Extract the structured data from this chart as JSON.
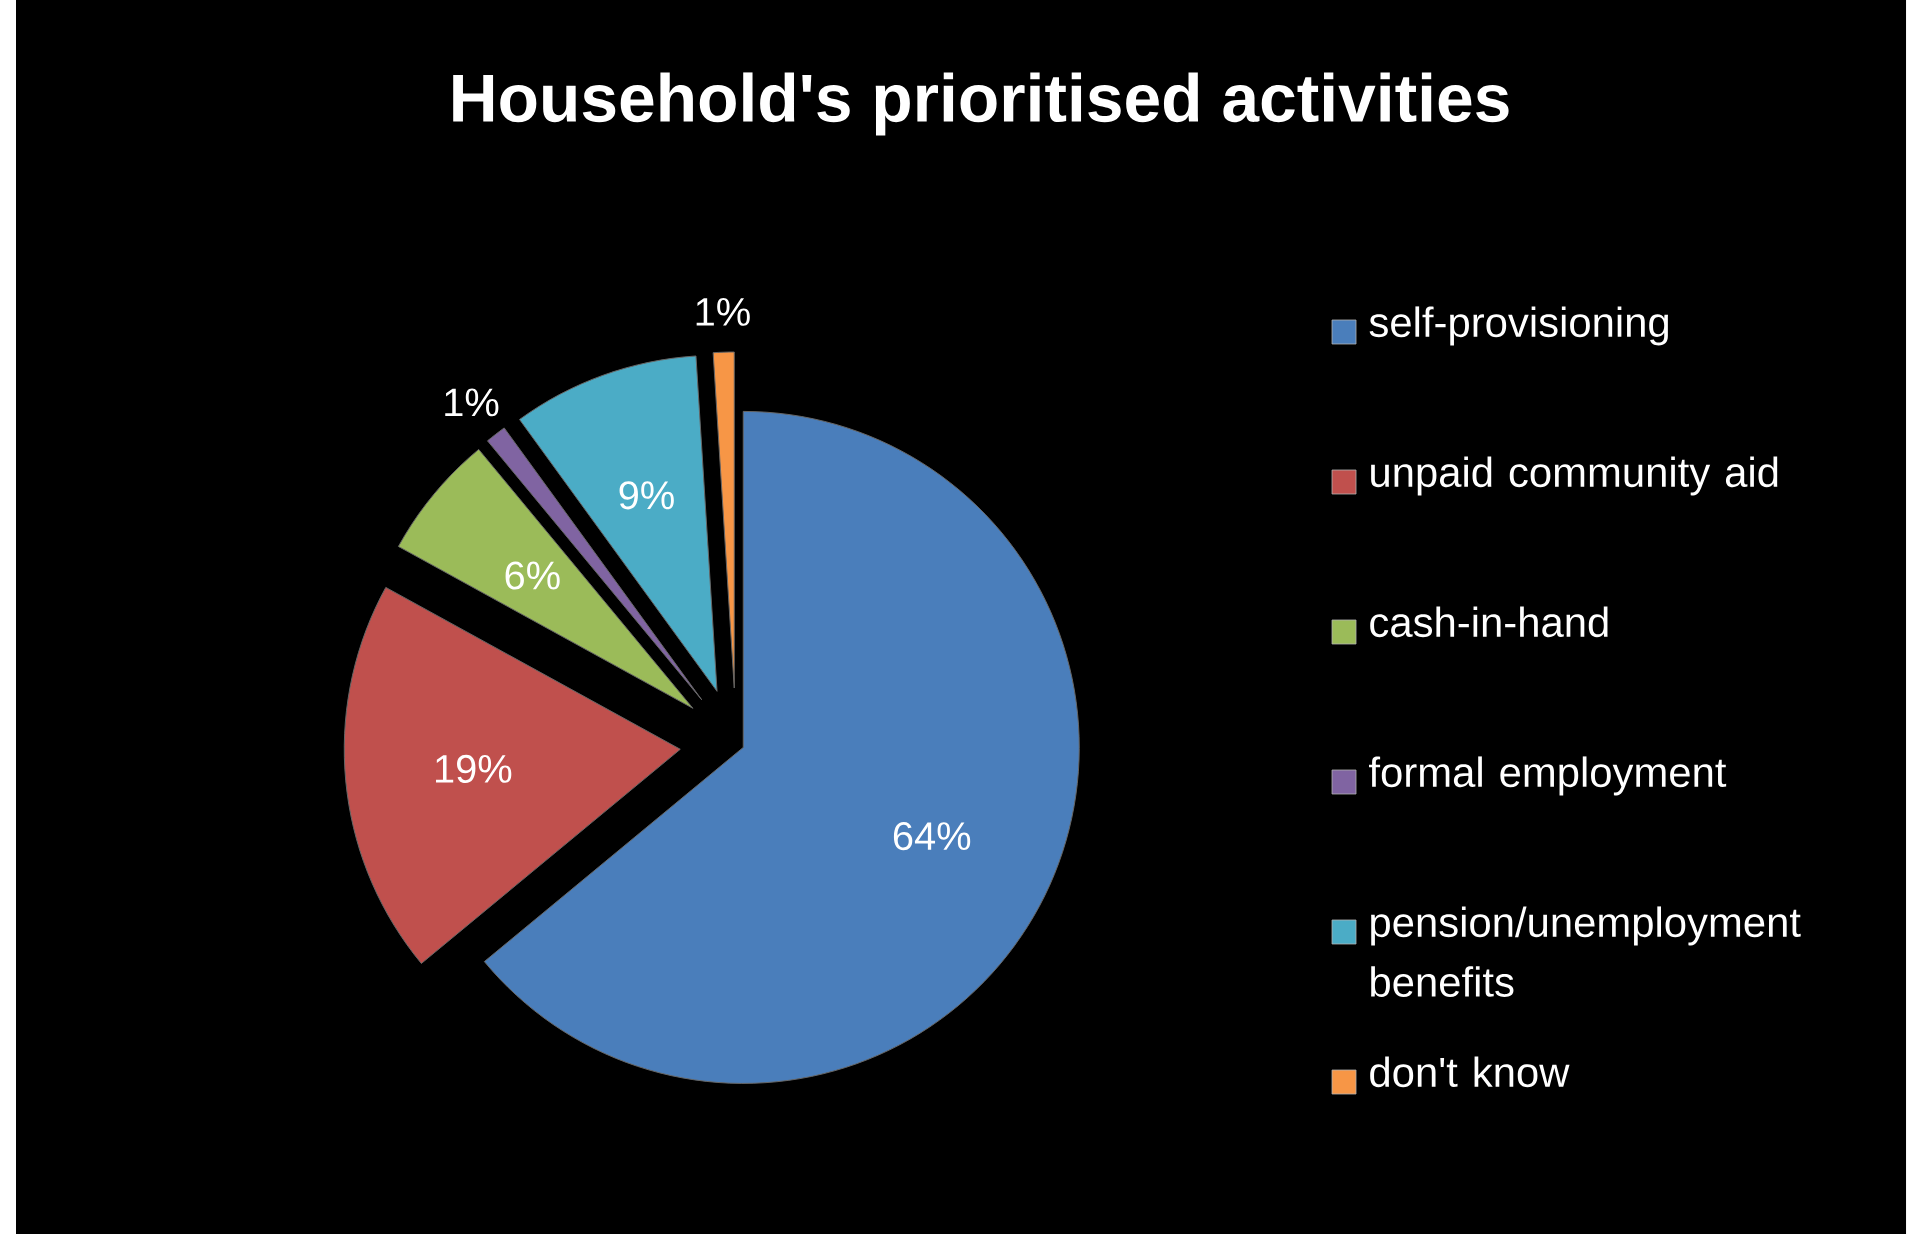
{
  "chart_data": {
    "type": "pie",
    "title": "Household's prioritised activities",
    "categories": [
      "self-provisioning",
      "unpaid community aid",
      "cash-in-hand",
      "formal employment",
      "pension/unemployment benefits",
      "don't know"
    ],
    "values": [
      64,
      19,
      6,
      1,
      9,
      1
    ],
    "colors": [
      "#4a7ebb",
      "#c0504d",
      "#9bbb59",
      "#8064a2",
      "#4bacc6",
      "#f79646"
    ],
    "value_labels": [
      "64%",
      "19%",
      "6%",
      "1%",
      "9%",
      "1%"
    ],
    "legend": "right"
  }
}
